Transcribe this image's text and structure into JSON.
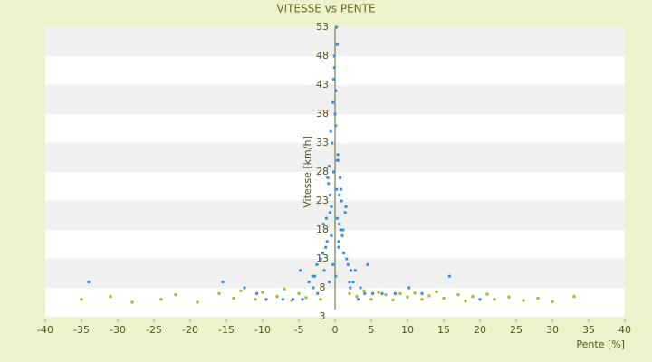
{
  "chart_data": {
    "type": "scatter",
    "title": "VITESSE vs PENTE",
    "x_label": "Pente [%]",
    "y_label": "Vitesse [km/h]",
    "xlim": [
      -40,
      40
    ],
    "xticks": [
      -40,
      -35,
      -30,
      -25,
      -20,
      -15,
      -10,
      -5,
      0,
      5,
      10,
      15,
      20,
      25,
      30,
      35,
      40
    ],
    "ylim": [
      3,
      53
    ],
    "yticks": [
      3,
      8,
      13,
      18,
      23,
      28,
      33,
      38,
      43,
      48,
      53
    ],
    "grid": true,
    "series": [
      {
        "color": "#b0b020",
        "x": [
          -35,
          -31,
          -28,
          -24,
          -22,
          -19,
          -16,
          -14,
          -13,
          -11,
          -10,
          -8,
          -7,
          -6,
          -5,
          -4,
          -3,
          -2,
          2,
          3,
          4,
          5,
          6,
          7,
          8,
          9,
          10,
          11,
          12,
          13,
          14,
          15,
          17,
          18,
          19,
          21,
          22,
          24,
          26,
          28,
          30,
          33
        ],
        "values": [
          6,
          6.5,
          5.5,
          6,
          6.8,
          5.5,
          7,
          6.2,
          7.5,
          6,
          7.2,
          6.5,
          7.8,
          5.8,
          7,
          6.3,
          8,
          6,
          7,
          6.5,
          7.5,
          6,
          7.2,
          6.8,
          5.9,
          7,
          6.4,
          7.1,
          6,
          6.6,
          7.3,
          6.2,
          6.8,
          5.7,
          6.5,
          6.9,
          6,
          6.4,
          5.8,
          6.2,
          5.6,
          6.5
        ]
      },
      {
        "color": "#3a8fd9",
        "x": [
          0.1,
          -0.3,
          0.5,
          -0.8,
          1.2,
          -1.5,
          0.3,
          2.1,
          -2.4,
          0.8,
          -0.5,
          1.6,
          -1.1,
          3.2,
          -3.0,
          0.2,
          -0.2,
          0.6,
          -0.7,
          1.0,
          -1.3,
          2.5,
          -2.8,
          4.1,
          -4.5,
          0.4,
          -0.4,
          0.9,
          -0.9,
          1.8,
          -1.7,
          5.2,
          -5.8,
          0.0,
          0.1,
          -0.1,
          0.3,
          -0.6,
          1.4,
          -2.0,
          3.5,
          -3.6,
          6.5,
          -7.2,
          8.3,
          -9.5,
          0.7,
          -0.8,
          2.2,
          -2.5,
          0.2,
          -0.3,
          1.1,
          -1.2,
          0.5,
          -0.5,
          15.8,
          -15.5,
          10.2,
          -10.8,
          0.4,
          0.1,
          -0.2,
          1.5,
          -1.6,
          2.8,
          -3.1,
          0.6,
          -0.7,
          12.0,
          -12.5,
          20.0,
          -34.0,
          0.3,
          -0.1,
          0.8,
          -1.0,
          4.5,
          -4.8,
          2.0
        ],
        "values": [
          10,
          12,
          15,
          9,
          14,
          11,
          20,
          8,
          7,
          18,
          22,
          13,
          16,
          6,
          8,
          25,
          28,
          19,
          24,
          17,
          15,
          9,
          10,
          7,
          6,
          30,
          33,
          23,
          26,
          12,
          14,
          7,
          6,
          38,
          42,
          46,
          50,
          35,
          21,
          13,
          8,
          9,
          7,
          6,
          7,
          6,
          27,
          29,
          11,
          12,
          53,
          40,
          18,
          20,
          16,
          17,
          10,
          9,
          8,
          7,
          31,
          36,
          44,
          22,
          19,
          11,
          10,
          24,
          21,
          7,
          8,
          6,
          9,
          30,
          48,
          25,
          27,
          12,
          11,
          9
        ]
      }
    ]
  }
}
